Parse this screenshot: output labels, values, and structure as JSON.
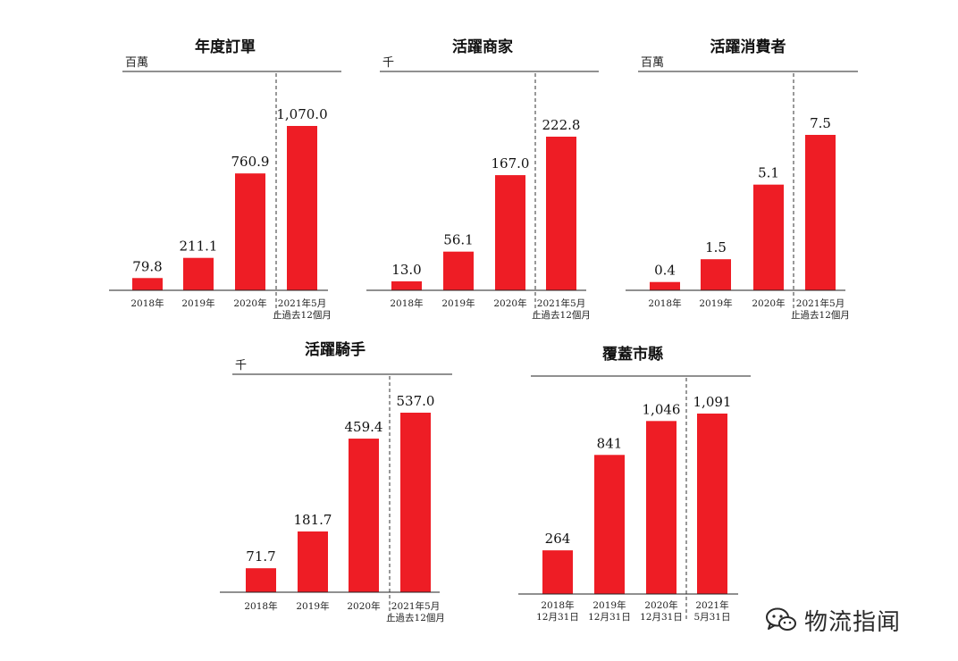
{
  "chart_data": [
    {
      "type": "bar",
      "title": "年度訂單",
      "unit": "百萬",
      "categories": [
        [
          "2018年"
        ],
        [
          "2019年"
        ],
        [
          "2020年"
        ],
        [
          "2021年5月",
          "止過去12個月"
        ]
      ],
      "values": [
        79.8,
        211.1,
        760.9,
        1070.0
      ],
      "value_labels": [
        "79.8",
        "211.1",
        "760.9",
        "1,070.0"
      ],
      "bar_color": "#EE1D25"
    },
    {
      "type": "bar",
      "title": "活躍商家",
      "unit": "千",
      "categories": [
        [
          "2018年"
        ],
        [
          "2019年"
        ],
        [
          "2020年"
        ],
        [
          "2021年5月",
          "止過去12個月"
        ]
      ],
      "values": [
        13.0,
        56.1,
        167.0,
        222.8
      ],
      "value_labels": [
        "13.0",
        "56.1",
        "167.0",
        "222.8"
      ],
      "bar_color": "#EE1D25"
    },
    {
      "type": "bar",
      "title": "活躍消費者",
      "unit": "百萬",
      "categories": [
        [
          "2018年"
        ],
        [
          "2019年"
        ],
        [
          "2020年"
        ],
        [
          "2021年5月",
          "止過去12個月"
        ]
      ],
      "values": [
        0.4,
        1.5,
        5.1,
        7.5
      ],
      "value_labels": [
        "0.4",
        "1.5",
        "5.1",
        "7.5"
      ],
      "bar_color": "#EE1D25"
    },
    {
      "type": "bar",
      "title": "活躍騎手",
      "unit": "千",
      "categories": [
        [
          "2018年"
        ],
        [
          "2019年"
        ],
        [
          "2020年"
        ],
        [
          "2021年5月",
          "止過去12個月"
        ]
      ],
      "values": [
        71.7,
        181.7,
        459.4,
        537.0
      ],
      "value_labels": [
        "71.7",
        "181.7",
        "459.4",
        "537.0"
      ],
      "bar_color": "#EE1D25"
    },
    {
      "type": "bar",
      "title": "覆蓋市縣",
      "unit": "",
      "categories": [
        [
          "2018年",
          "12月31日"
        ],
        [
          "2019年",
          "12月31日"
        ],
        [
          "2020年",
          "12月31日"
        ],
        [
          "2021年",
          "5月31日"
        ]
      ],
      "values": [
        264,
        841,
        1046,
        1091
      ],
      "value_labels": [
        "264",
        "841",
        "1,046",
        "1,091"
      ],
      "bar_color": "#EE1D25"
    }
  ],
  "watermark": {
    "text": "物流指闻",
    "icon": "wechat-icon"
  }
}
